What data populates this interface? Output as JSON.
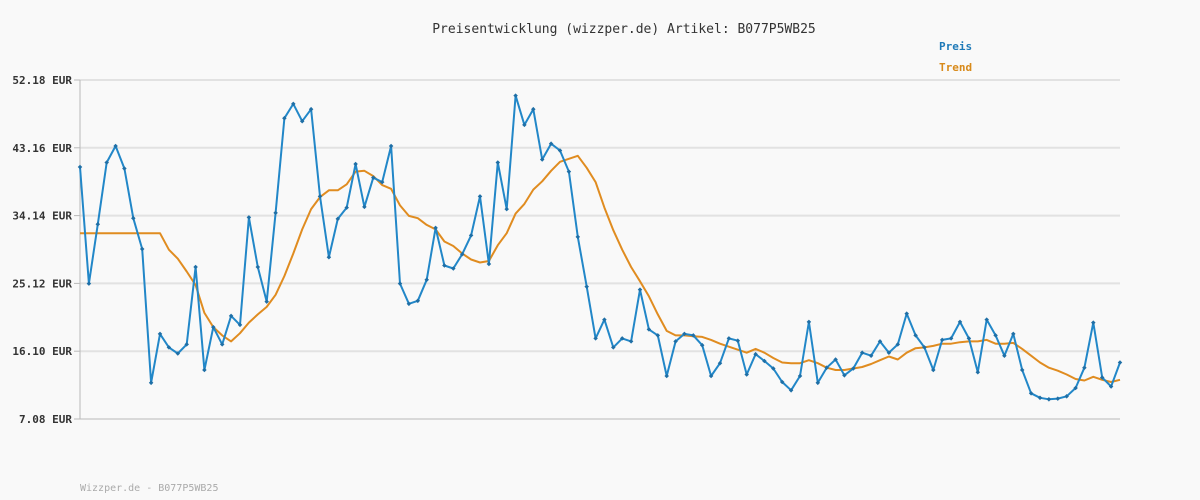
{
  "chart_data": {
    "type": "line",
    "title": "Preisentwicklung (wizzper.de) Artikel: B077P5WB25",
    "ylim": [
      7.08,
      52.18
    ],
    "yticks": [
      "52.18 EUR",
      "43.16 EUR",
      "34.14 EUR",
      "25.12 EUR",
      "16.10 EUR",
      "7.08 EUR"
    ],
    "ytick_values": [
      52.18,
      43.16,
      34.14,
      25.12,
      16.1,
      7.08
    ],
    "grid": true,
    "legend": "top-right",
    "series": [
      {
        "name": "Preis",
        "color": "#2287c8",
        "values": [
          40.6,
          25.1,
          33.0,
          41.2,
          43.4,
          40.4,
          33.8,
          29.7,
          11.9,
          18.4,
          16.6,
          15.8,
          17.0,
          27.3,
          13.6,
          19.3,
          17.0,
          20.8,
          19.6,
          33.9,
          27.3,
          22.7,
          34.5,
          47.1,
          49.0,
          46.7,
          48.3,
          36.7,
          28.6,
          33.7,
          35.2,
          41.0,
          35.3,
          39.2,
          38.6,
          43.4,
          25.1,
          22.4,
          22.8,
          25.6,
          32.5,
          27.5,
          27.1,
          29.0,
          31.5,
          36.7,
          27.7,
          41.2,
          35.0,
          50.1,
          46.2,
          48.3,
          41.6,
          43.7,
          42.8,
          40.0,
          31.3,
          24.7,
          17.8,
          20.3,
          16.6,
          17.8,
          17.4,
          24.3,
          19.0,
          18.2,
          12.8,
          17.4,
          18.4,
          18.2,
          16.9,
          12.8,
          14.5,
          17.8,
          17.5,
          13.0,
          15.7,
          14.8,
          13.8,
          12.0,
          10.9,
          12.8,
          20.0,
          11.9,
          13.9,
          15.0,
          12.9,
          13.8,
          15.9,
          15.5,
          17.4,
          15.9,
          17.0,
          21.1,
          18.2,
          16.6,
          13.6,
          17.6,
          17.8,
          20.0,
          17.8,
          13.3,
          20.3,
          18.2,
          15.5,
          18.4,
          13.6,
          10.5,
          9.9,
          9.7,
          9.8,
          10.1,
          11.2,
          13.9,
          19.9,
          12.6,
          11.4,
          14.6
        ]
      },
      {
        "name": "Trend",
        "color": "#e08c20",
        "values": [
          31.8,
          31.8,
          31.8,
          31.8,
          31.8,
          31.8,
          31.8,
          31.8,
          31.8,
          31.8,
          29.6,
          28.4,
          26.7,
          24.9,
          21.2,
          19.3,
          18.2,
          17.4,
          18.5,
          19.9,
          21.0,
          22.0,
          23.6,
          26.1,
          29.1,
          32.3,
          35.0,
          36.6,
          37.5,
          37.5,
          38.3,
          40.0,
          40.1,
          39.4,
          38.2,
          37.7,
          35.5,
          34.1,
          33.8,
          32.9,
          32.3,
          30.7,
          30.1,
          29.1,
          28.3,
          27.9,
          28.1,
          30.2,
          31.8,
          34.4,
          35.7,
          37.6,
          38.7,
          40.1,
          41.3,
          41.7,
          42.1,
          40.5,
          38.6,
          35.2,
          32.2,
          29.6,
          27.3,
          25.4,
          23.4,
          21.0,
          18.8,
          18.2,
          18.2,
          18.1,
          18.0,
          17.6,
          17.1,
          16.7,
          16.3,
          15.9,
          16.4,
          15.9,
          15.2,
          14.6,
          14.5,
          14.5,
          14.9,
          14.5,
          13.9,
          13.6,
          13.6,
          13.8,
          14.0,
          14.4,
          14.9,
          15.4,
          15.0,
          15.9,
          16.5,
          16.6,
          16.8,
          17.1,
          17.1,
          17.3,
          17.4,
          17.4,
          17.6,
          17.1,
          17.1,
          17.2,
          16.4,
          15.5,
          14.6,
          13.9,
          13.5,
          13.0,
          12.4,
          12.2,
          12.7,
          12.3,
          12.0,
          12.3
        ]
      }
    ]
  },
  "footer": "Wizzper.de - B077P5WB25"
}
